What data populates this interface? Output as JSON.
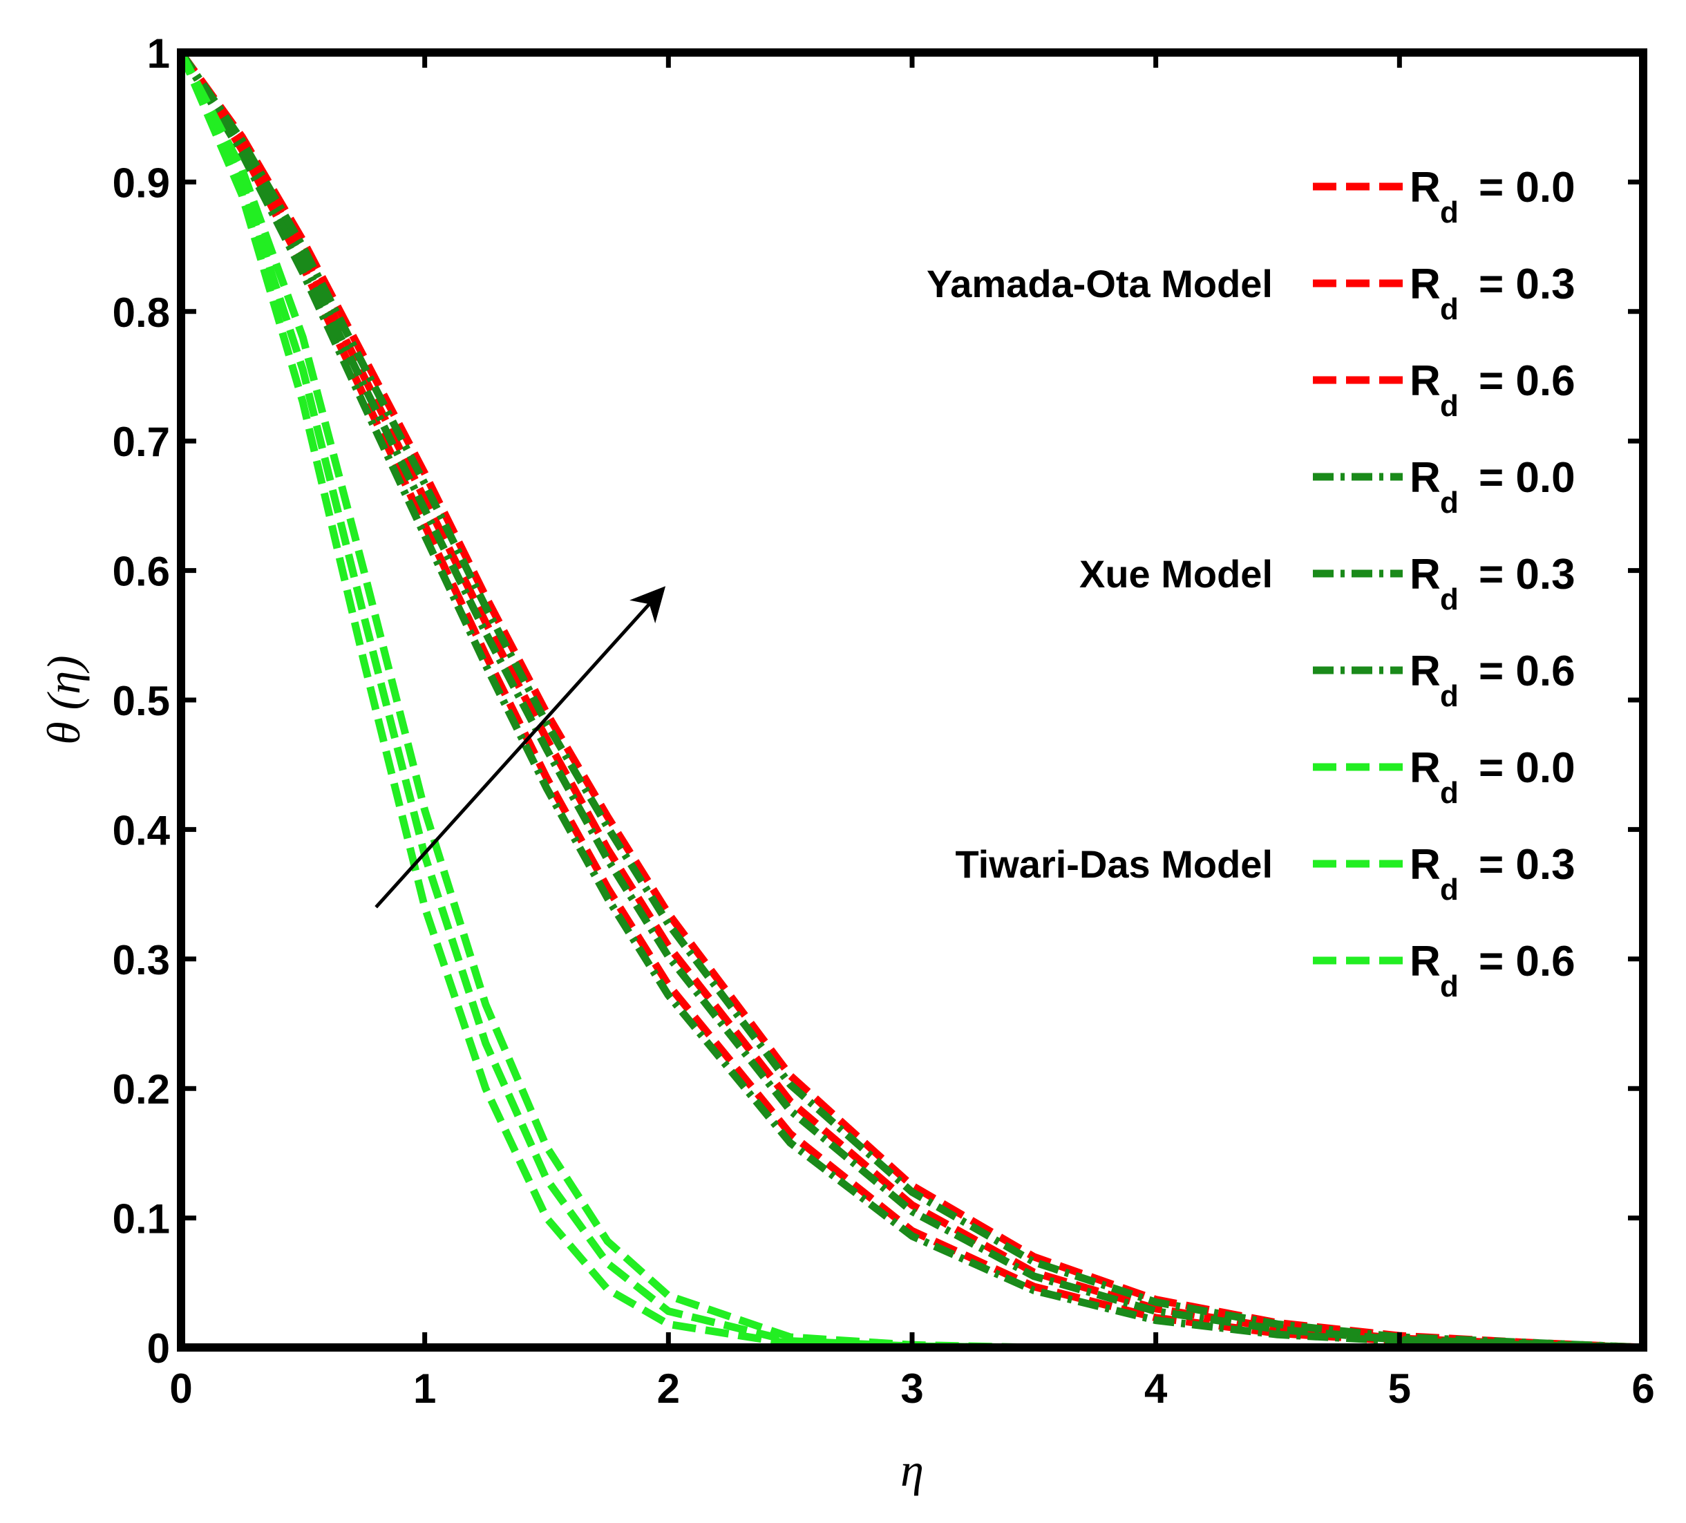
{
  "chart_data": {
    "type": "line",
    "title": "",
    "xlabel": "η",
    "ylabel": "θ (η)",
    "xlim": [
      0,
      6
    ],
    "ylim": [
      0,
      1
    ],
    "xticks": [
      "0",
      "1",
      "2",
      "3",
      "4",
      "5",
      "6"
    ],
    "yticks": [
      "0",
      "0.1",
      "0.2",
      "0.3",
      "0.4",
      "0.5",
      "0.6",
      "0.7",
      "0.8",
      "0.9",
      "1"
    ],
    "grid": false,
    "legend_position": "top-right",
    "annotation": "arrow indicating increasing R_d",
    "arrow": {
      "from": [
        0.8,
        0.34
      ],
      "to": [
        1.95,
        0.58
      ]
    },
    "x": [
      0,
      0.25,
      0.5,
      0.75,
      1,
      1.25,
      1.5,
      1.75,
      2,
      2.5,
      3,
      3.5,
      4,
      4.5,
      5,
      5.5,
      6
    ],
    "groups": [
      {
        "label": "Yamada-Ota Model",
        "color": "#ff0000",
        "dash": "dash"
      },
      {
        "label": "Xue Model",
        "color": "#1a8a1a",
        "dash": "dashdot"
      },
      {
        "label": "Tiwari-Das Model",
        "color": "#22ee22",
        "dash": "dash"
      }
    ],
    "series": [
      {
        "group": 0,
        "name": "R_d = 0.0",
        "rd_label": "R",
        "rd_sub": "d",
        "rd_value": "= 0.0",
        "color": "#ff0000",
        "dash": "dash",
        "values": [
          1,
          0.925,
          0.835,
          0.735,
          0.635,
          0.535,
          0.44,
          0.355,
          0.28,
          0.165,
          0.09,
          0.047,
          0.023,
          0.011,
          0.005,
          0.002,
          0
        ]
      },
      {
        "group": 0,
        "name": "R_d = 0.3",
        "rd_label": "R",
        "rd_sub": "d",
        "rd_value": "= 0.3",
        "color": "#ff0000",
        "dash": "dash",
        "values": [
          1,
          0.93,
          0.845,
          0.75,
          0.655,
          0.56,
          0.47,
          0.385,
          0.31,
          0.19,
          0.11,
          0.058,
          0.03,
          0.015,
          0.007,
          0.003,
          0
        ]
      },
      {
        "group": 0,
        "name": "R_d = 0.6",
        "rd_label": "R",
        "rd_sub": "d",
        "rd_value": "= 0.6",
        "color": "#ff0000",
        "dash": "dash",
        "values": [
          1,
          0.935,
          0.855,
          0.765,
          0.675,
          0.58,
          0.49,
          0.41,
          0.335,
          0.21,
          0.125,
          0.07,
          0.037,
          0.019,
          0.009,
          0.004,
          0
        ]
      },
      {
        "group": 1,
        "name": "R_d = 0.0",
        "rd_label": "R",
        "rd_sub": "d",
        "rd_value": "= 0.0",
        "color": "#1a8a1a",
        "dash": "dashdot",
        "values": [
          1,
          0.922,
          0.83,
          0.728,
          0.627,
          0.527,
          0.432,
          0.347,
          0.272,
          0.158,
          0.086,
          0.044,
          0.021,
          0.01,
          0.005,
          0.002,
          0
        ]
      },
      {
        "group": 1,
        "name": "R_d = 0.3",
        "rd_label": "R",
        "rd_sub": "d",
        "rd_value": "= 0.3",
        "color": "#1a8a1a",
        "dash": "dashdot",
        "values": [
          1,
          0.927,
          0.84,
          0.743,
          0.647,
          0.552,
          0.462,
          0.377,
          0.302,
          0.183,
          0.105,
          0.055,
          0.028,
          0.014,
          0.006,
          0.003,
          0
        ]
      },
      {
        "group": 1,
        "name": "R_d = 0.6",
        "rd_label": "R",
        "rd_sub": "d",
        "rd_value": "= 0.6",
        "color": "#1a8a1a",
        "dash": "dashdot",
        "values": [
          1,
          0.932,
          0.85,
          0.758,
          0.667,
          0.572,
          0.482,
          0.402,
          0.327,
          0.203,
          0.12,
          0.066,
          0.035,
          0.018,
          0.008,
          0.004,
          0
        ]
      },
      {
        "group": 2,
        "name": "R_d = 0.0",
        "rd_label": "R",
        "rd_sub": "d",
        "rd_value": "= 0.0",
        "color": "#22ee22",
        "dash": "dash",
        "values": [
          1,
          0.89,
          0.73,
          0.53,
          0.34,
          0.2,
          0.1,
          0.045,
          0.018,
          0.003,
          0.001,
          0,
          0,
          0,
          0,
          0,
          0
        ]
      },
      {
        "group": 2,
        "name": "R_d = 0.3",
        "rd_label": "R",
        "rd_sub": "d",
        "rd_value": "= 0.3",
        "color": "#22ee22",
        "dash": "dash",
        "values": [
          1,
          0.9,
          0.755,
          0.565,
          0.38,
          0.235,
          0.13,
          0.065,
          0.028,
          0.005,
          0.001,
          0,
          0,
          0,
          0,
          0,
          0
        ]
      },
      {
        "group": 2,
        "name": "R_d = 0.6",
        "rd_label": "R",
        "rd_sub": "d",
        "rd_value": "= 0.6",
        "color": "#22ee22",
        "dash": "dash",
        "values": [
          1,
          0.91,
          0.78,
          0.6,
          0.415,
          0.265,
          0.155,
          0.082,
          0.04,
          0.008,
          0.002,
          0,
          0,
          0,
          0,
          0,
          0
        ]
      }
    ]
  }
}
